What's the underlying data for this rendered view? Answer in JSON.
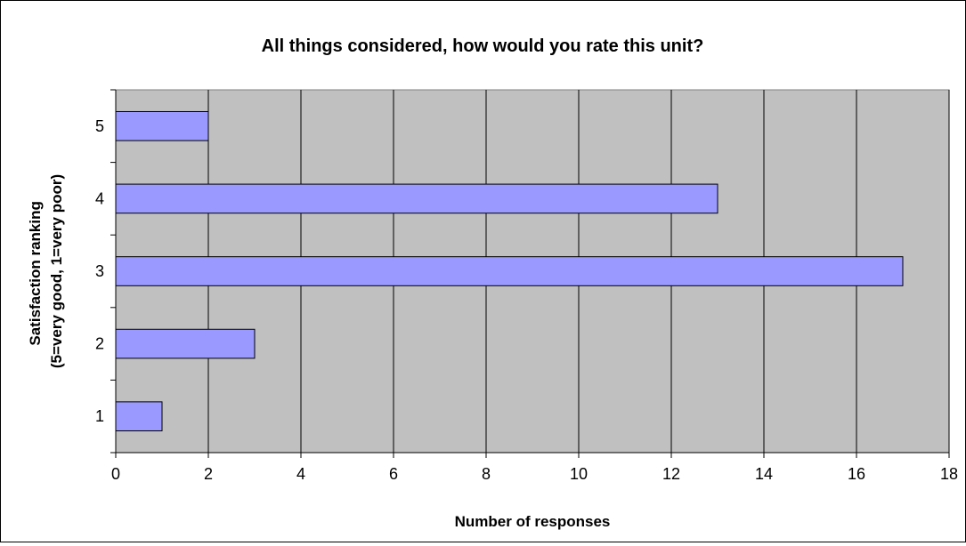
{
  "chart_data": {
    "type": "bar",
    "orientation": "horizontal",
    "title": "All things considered, how would you rate this unit?",
    "xlabel": "Number of responses",
    "ylabel_lines": [
      "Satisfaction ranking",
      "(5=very good, 1=very poor)"
    ],
    "categories": [
      "1",
      "2",
      "3",
      "4",
      "5"
    ],
    "values": [
      1,
      3,
      17,
      13,
      2
    ],
    "xlim": [
      0,
      18
    ],
    "xticks": [
      0,
      2,
      4,
      6,
      8,
      10,
      12,
      14,
      16,
      18
    ],
    "grid": "vertical",
    "legend": "none",
    "colors": {
      "bar_fill": "#9999ff",
      "bar_stroke": "#000000",
      "plot_background": "#c0c0c0",
      "grid": "#000000"
    }
  }
}
